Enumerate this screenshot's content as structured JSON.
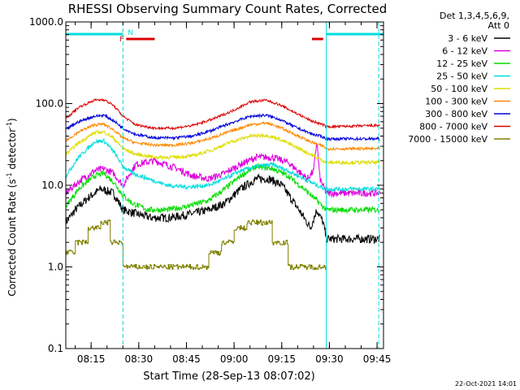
{
  "chart_data": {
    "type": "line",
    "title": "RHESSI Observing Summary Count Rates, Corrected",
    "xlabel": "Start Time (28-Sep-13 08:07:02)",
    "ylabel_main": "Corrected Count Rate (s",
    "ylabel_exp1": "-1",
    "ylabel_mid": " detector",
    "ylabel_exp2": "-1",
    "ylabel_end": ")",
    "y_scale": "log",
    "ylim": [
      0.1,
      1000
    ],
    "xlim_minutes": [
      0,
      100
    ],
    "yticks": [
      {
        "value": 1000,
        "label": "1000.0"
      },
      {
        "value": 100,
        "label": "100.0"
      },
      {
        "value": 10,
        "label": "10.0"
      },
      {
        "value": 1,
        "label": "1.0"
      },
      {
        "value": 0.1,
        "label": "0.1"
      }
    ],
    "xticks": [
      {
        "minute": 7.97,
        "label": "08:15"
      },
      {
        "minute": 22.97,
        "label": "08:30"
      },
      {
        "minute": 37.97,
        "label": "08:45"
      },
      {
        "minute": 52.97,
        "label": "09:00"
      },
      {
        "minute": 67.97,
        "label": "09:15"
      },
      {
        "minute": 82.97,
        "label": "09:30"
      },
      {
        "minute": 97.97,
        "label": "09:45"
      }
    ],
    "legend": {
      "header": [
        "Det 1,3,4,5,6,9,",
        "Att 0"
      ],
      "placement": "right",
      "entries": [
        {
          "label": "3 - 6 keV",
          "color": "#000000"
        },
        {
          "label": "6 - 12 keV",
          "color": "#dd00dd"
        },
        {
          "label": "12 - 25 keV",
          "color": "#00dd00"
        },
        {
          "label": "25 - 50 keV",
          "color": "#00dddd"
        },
        {
          "label": "50 - 100 keV",
          "color": "#dddd00"
        },
        {
          "label": "100 - 300 keV",
          "color": "#ff8800"
        },
        {
          "label": "300 - 800 keV",
          "color": "#0000dd"
        },
        {
          "label": "800 - 7000 keV",
          "color": "#dd0000"
        },
        {
          "label": "7000 - 15000 keV",
          "color": "#808000"
        }
      ]
    },
    "flags": {
      "night_label": "N",
      "flare_label": "F",
      "night_color": "#00dddd",
      "flare_color": "#dd0000",
      "night_intervals": [
        [
          0,
          18
        ],
        [
          82,
          100
        ]
      ],
      "flare_intervals": [
        [
          19,
          28
        ],
        [
          77.5,
          81
        ]
      ]
    },
    "boundaries_minutes": [
      18,
      82,
      98.5
    ],
    "series": [
      {
        "name": "3 - 6 keV",
        "color": "#000000",
        "noise": 0.12,
        "x": [
          0,
          3,
          7,
          11,
          15,
          18,
          22,
          27,
          33,
          40,
          45,
          50,
          55,
          60,
          64,
          68,
          72,
          75,
          77,
          79,
          81,
          82,
          99
        ],
        "y": [
          3.5,
          5,
          7,
          9,
          8,
          5,
          4.5,
          4,
          4,
          4.5,
          5,
          6,
          9,
          12,
          12,
          10,
          6,
          4,
          3,
          5,
          3.5,
          2.2,
          2.2
        ]
      },
      {
        "name": "6 - 12 keV",
        "color": "#dd00dd",
        "noise": 0.1,
        "x": [
          0,
          4,
          9,
          12,
          15,
          18,
          22,
          28,
          35,
          40,
          45,
          50,
          55,
          60,
          65,
          70,
          74,
          76,
          78,
          79,
          80,
          82,
          99
        ],
        "y": [
          8,
          11,
          15,
          16,
          14,
          10,
          18,
          20,
          16,
          13,
          12,
          14,
          18,
          22,
          22,
          19,
          14,
          12,
          15,
          35,
          12,
          8,
          8
        ]
      },
      {
        "name": "12 - 25 keV",
        "color": "#00dd00",
        "noise": 0.08,
        "x": [
          0,
          4,
          9,
          12,
          15,
          18,
          21,
          26,
          32,
          38,
          45,
          50,
          55,
          60,
          65,
          70,
          75,
          79,
          82,
          99
        ],
        "y": [
          5.5,
          9,
          13,
          14,
          11,
          7.5,
          6,
          5,
          5,
          5.5,
          6.5,
          9,
          13,
          17,
          16,
          13,
          9,
          6.5,
          5,
          5
        ]
      },
      {
        "name": "25 - 50 keV",
        "color": "#00dddd",
        "noise": 0.06,
        "x": [
          0,
          4,
          9,
          12,
          15,
          18,
          21,
          26,
          32,
          38,
          45,
          50,
          55,
          60,
          65,
          70,
          75,
          79,
          82,
          99
        ],
        "y": [
          13,
          22,
          34,
          35,
          26,
          17,
          14,
          12,
          10,
          9.5,
          10,
          12,
          15,
          17,
          18,
          15,
          12,
          10,
          9,
          9
        ]
      },
      {
        "name": "50 - 100 keV",
        "color": "#dddd00",
        "noise": 0.05,
        "x": [
          0,
          4,
          9,
          12,
          15,
          18,
          22,
          28,
          34,
          40,
          46,
          52,
          58,
          63,
          67,
          72,
          77,
          81,
          82,
          99
        ],
        "y": [
          24,
          33,
          44,
          45,
          38,
          28,
          24,
          22,
          22,
          23,
          27,
          34,
          40,
          41,
          37,
          30,
          24,
          20,
          19,
          19
        ]
      },
      {
        "name": "100 - 300 keV",
        "color": "#ff8800",
        "noise": 0.04,
        "x": [
          0,
          4,
          9,
          12,
          15,
          18,
          22,
          28,
          34,
          40,
          46,
          52,
          58,
          63,
          67,
          72,
          77,
          81,
          82,
          99
        ],
        "y": [
          35,
          45,
          55,
          56,
          48,
          38,
          33,
          31,
          31,
          33,
          38,
          46,
          55,
          58,
          52,
          42,
          34,
          30,
          28,
          28
        ]
      },
      {
        "name": "300 - 800 keV",
        "color": "#0000dd",
        "noise": 0.04,
        "x": [
          0,
          4,
          9,
          12,
          15,
          18,
          22,
          28,
          34,
          40,
          46,
          52,
          58,
          63,
          67,
          72,
          77,
          81,
          82,
          99
        ],
        "y": [
          48,
          60,
          70,
          72,
          62,
          50,
          42,
          38,
          38,
          40,
          47,
          58,
          70,
          72,
          65,
          52,
          43,
          39,
          37,
          37
        ]
      },
      {
        "name": "800 - 7000 keV",
        "color": "#dd0000",
        "noise": 0.035,
        "x": [
          0,
          4,
          9,
          12,
          15,
          18,
          22,
          28,
          34,
          40,
          46,
          52,
          58,
          63,
          67,
          72,
          77,
          81,
          82,
          99
        ],
        "y": [
          65,
          90,
          110,
          112,
          95,
          70,
          55,
          50,
          50,
          54,
          64,
          80,
          105,
          110,
          98,
          78,
          62,
          55,
          52,
          54
        ]
      },
      {
        "name": "7000 - 15000 keV",
        "color": "#808000",
        "step": true,
        "x": [
          0,
          3,
          7,
          11,
          14,
          18,
          45,
          49,
          53,
          57,
          60,
          65,
          70,
          82
        ],
        "y": [
          1.5,
          2,
          3,
          3.5,
          2,
          1.0,
          1.5,
          2.0,
          3.0,
          3.5,
          3.5,
          2.0,
          1.0,
          1.0
        ]
      }
    ],
    "footer_date": "22-Oct-2021 14:01"
  }
}
